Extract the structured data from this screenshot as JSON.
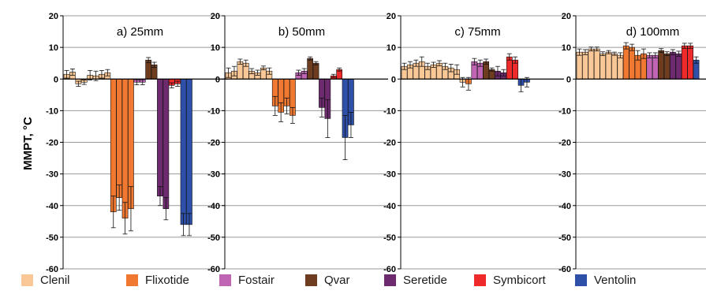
{
  "chart_data": {
    "type": "bar",
    "ylabel": "MMPT, °C",
    "ylim": [
      -60,
      20
    ],
    "yticks": [
      20,
      10,
      0,
      -10,
      -20,
      -30,
      -40,
      -50,
      -60
    ],
    "grid": true,
    "legend_position": "bottom",
    "legend": [
      {
        "label": "Clenil",
        "color": "#FAC896"
      },
      {
        "label": "Flixotide",
        "color": "#F07830"
      },
      {
        "label": "Fostair",
        "color": "#C064B4"
      },
      {
        "label": "Qvar",
        "color": "#6E3C1E"
      },
      {
        "label": "Seretide",
        "color": "#6E2A6E"
      },
      {
        "label": "Symbicort",
        "color": "#EE2A2A"
      },
      {
        "label": "Ventolin",
        "color": "#2E50A8"
      }
    ],
    "panels": [
      {
        "title": "a) 25mm",
        "bars": [
          {
            "group": "Clenil",
            "value": 1.5,
            "err": 1.2
          },
          {
            "group": "Clenil",
            "value": 2.2,
            "err": 1.0
          },
          {
            "group": "Clenil",
            "value": -1.5,
            "err": 0.8
          },
          {
            "group": "Clenil",
            "value": -1.0,
            "err": 0.7
          },
          {
            "group": "Clenil",
            "value": 1.2,
            "err": 1.5
          },
          {
            "group": "Clenil",
            "value": 1.0,
            "err": 1.5
          },
          {
            "group": "Clenil",
            "value": 1.5,
            "err": 1.2
          },
          {
            "group": "Clenil",
            "value": 2.0,
            "err": 1.0
          },
          {
            "group": "Flixotide",
            "value": -42.0,
            "err": 5.0
          },
          {
            "group": "Flixotide",
            "value": -37.5,
            "err": 4.0
          },
          {
            "group": "Flixotide",
            "value": -44.0,
            "err": 5.0
          },
          {
            "group": "Flixotide",
            "value": -41.0,
            "err": 7.0
          },
          {
            "group": "Fostair",
            "value": -1.0,
            "err": 0.8
          },
          {
            "group": "Fostair",
            "value": -1.0,
            "err": 0.8
          },
          {
            "group": "Qvar",
            "value": 6.0,
            "err": 0.8
          },
          {
            "group": "Qvar",
            "value": 4.5,
            "err": 0.8
          },
          {
            "group": "Seretide",
            "value": -37.0,
            "err": 3.0
          },
          {
            "group": "Seretide",
            "value": -41.0,
            "err": 3.5
          },
          {
            "group": "Symbicort",
            "value": -2.0,
            "err": 0.8
          },
          {
            "group": "Symbicort",
            "value": -1.5,
            "err": 0.8
          },
          {
            "group": "Ventolin",
            "value": -46.0,
            "err": 3.5
          },
          {
            "group": "Ventolin",
            "value": -46.0,
            "err": 3.5
          }
        ]
      },
      {
        "title": "b) 50mm",
        "bars": [
          {
            "group": "Clenil",
            "value": 2.0,
            "err": 1.5
          },
          {
            "group": "Clenil",
            "value": 2.5,
            "err": 1.5
          },
          {
            "group": "Clenil",
            "value": 5.5,
            "err": 0.8
          },
          {
            "group": "Clenil",
            "value": 5.0,
            "err": 1.0
          },
          {
            "group": "Clenil",
            "value": 2.5,
            "err": 0.8
          },
          {
            "group": "Clenil",
            "value": 2.0,
            "err": 0.8
          },
          {
            "group": "Clenil",
            "value": 3.5,
            "err": 0.6
          },
          {
            "group": "Clenil",
            "value": 2.5,
            "err": 1.0
          },
          {
            "group": "Flixotide",
            "value": -8.5,
            "err": 3.0
          },
          {
            "group": "Flixotide",
            "value": -10.5,
            "err": 3.0
          },
          {
            "group": "Flixotide",
            "value": -8.5,
            "err": 2.5
          },
          {
            "group": "Flixotide",
            "value": -11.5,
            "err": 2.5
          },
          {
            "group": "Fostair",
            "value": 2.0,
            "err": 0.8
          },
          {
            "group": "Fostair",
            "value": 2.5,
            "err": 0.8
          },
          {
            "group": "Qvar",
            "value": 6.5,
            "err": 0.5
          },
          {
            "group": "Qvar",
            "value": 5.0,
            "err": 0.5
          },
          {
            "group": "Seretide",
            "value": -9.0,
            "err": 3.0
          },
          {
            "group": "Seretide",
            "value": -12.5,
            "err": 6.0
          },
          {
            "group": "Symbicort",
            "value": 1.0,
            "err": 0.5
          },
          {
            "group": "Symbicort",
            "value": 3.0,
            "err": 0.5
          },
          {
            "group": "Ventolin",
            "value": -18.5,
            "err": 7.0
          },
          {
            "group": "Ventolin",
            "value": -14.5,
            "err": 4.0
          }
        ]
      },
      {
        "title": "c) 75mm",
        "bars": [
          {
            "group": "Clenil",
            "value": 4.0,
            "err": 1.0
          },
          {
            "group": "Clenil",
            "value": 4.5,
            "err": 1.0
          },
          {
            "group": "Clenil",
            "value": 5.0,
            "err": 1.0
          },
          {
            "group": "Clenil",
            "value": 5.5,
            "err": 1.5
          },
          {
            "group": "Clenil",
            "value": 4.0,
            "err": 1.0
          },
          {
            "group": "Clenil",
            "value": 4.5,
            "err": 0.8
          },
          {
            "group": "Clenil",
            "value": 5.0,
            "err": 0.8
          },
          {
            "group": "Clenil",
            "value": 4.0,
            "err": 1.0
          },
          {
            "group": "Clenil",
            "value": 3.5,
            "err": 1.2
          },
          {
            "group": "Clenil",
            "value": 3.0,
            "err": 1.5
          },
          {
            "group": "Clenil",
            "value": -1.0,
            "err": 1.5
          },
          {
            "group": "Flixotide",
            "value": -1.5,
            "err": 2.0
          },
          {
            "group": "Fostair",
            "value": 5.5,
            "err": 1.0
          },
          {
            "group": "Fostair",
            "value": 5.0,
            "err": 1.0
          },
          {
            "group": "Qvar",
            "value": 5.5,
            "err": 0.8
          },
          {
            "group": "Qvar",
            "value": 3.0,
            "err": 0.5
          },
          {
            "group": "Seretide",
            "value": 2.5,
            "err": 1.5
          },
          {
            "group": "Seretide",
            "value": 2.0,
            "err": 1.0
          },
          {
            "group": "Symbicort",
            "value": 7.0,
            "err": 1.0
          },
          {
            "group": "Symbicort",
            "value": 6.0,
            "err": 1.0
          },
          {
            "group": "Ventolin",
            "value": -2.0,
            "err": 2.0
          },
          {
            "group": "Ventolin",
            "value": -1.0,
            "err": 1.5
          }
        ]
      },
      {
        "title": "d) 100mm",
        "bars": [
          {
            "group": "Clenil",
            "value": 8.5,
            "err": 1.0
          },
          {
            "group": "Clenil",
            "value": 8.5,
            "err": 0.8
          },
          {
            "group": "Clenil",
            "value": 9.5,
            "err": 0.6
          },
          {
            "group": "Clenil",
            "value": 9.5,
            "err": 0.6
          },
          {
            "group": "Clenil",
            "value": 8.0,
            "err": 0.6
          },
          {
            "group": "Clenil",
            "value": 8.5,
            "err": 0.5
          },
          {
            "group": "Clenil",
            "value": 8.0,
            "err": 0.5
          },
          {
            "group": "Clenil",
            "value": 7.5,
            "err": 0.8
          },
          {
            "group": "Flixotide",
            "value": 10.5,
            "err": 1.0
          },
          {
            "group": "Flixotide",
            "value": 10.0,
            "err": 1.0
          },
          {
            "group": "Flixotide",
            "value": 7.5,
            "err": 1.5
          },
          {
            "group": "Flixotide",
            "value": 8.0,
            "err": 1.5
          },
          {
            "group": "Fostair",
            "value": 7.5,
            "err": 0.8
          },
          {
            "group": "Fostair",
            "value": 7.5,
            "err": 0.8
          },
          {
            "group": "Qvar",
            "value": 9.0,
            "err": 0.6
          },
          {
            "group": "Qvar",
            "value": 8.0,
            "err": 0.6
          },
          {
            "group": "Seretide",
            "value": 8.5,
            "err": 0.8
          },
          {
            "group": "Seretide",
            "value": 8.0,
            "err": 0.8
          },
          {
            "group": "Symbicort",
            "value": 10.5,
            "err": 0.8
          },
          {
            "group": "Symbicort",
            "value": 10.5,
            "err": 0.8
          },
          {
            "group": "Ventolin",
            "value": 6.0,
            "err": 1.0
          }
        ]
      }
    ]
  }
}
